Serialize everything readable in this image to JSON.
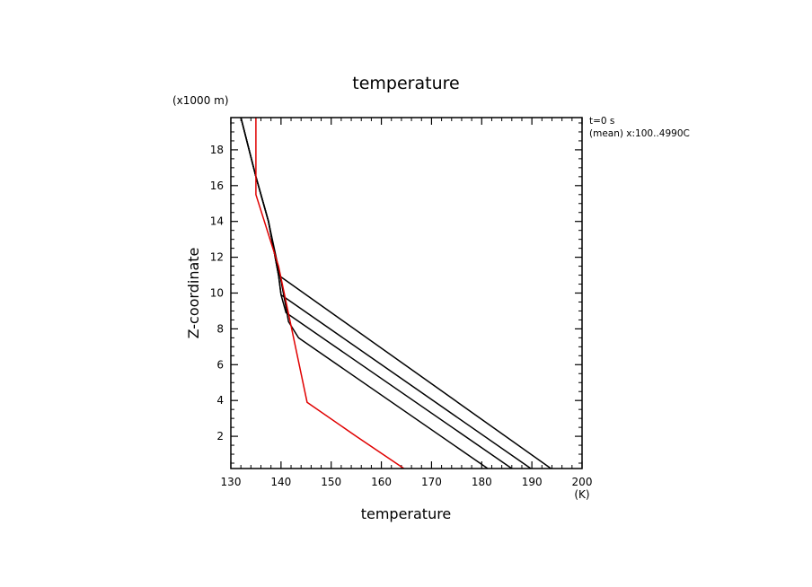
{
  "chart_data": {
    "type": "line",
    "title": "temperature",
    "xlabel": "temperature",
    "x_unit": "(K)",
    "ylabel": "Z-coordinate",
    "y_unit": "(x1000 m)",
    "annotation_lines": [
      "t=0 s",
      "(mean) x:100..4990C"
    ],
    "xlim": [
      130,
      200
    ],
    "ylim": [
      0.2,
      19.8
    ],
    "x_ticks": [
      130,
      140,
      150,
      160,
      170,
      180,
      190,
      200
    ],
    "y_ticks": [
      2,
      4,
      6,
      8,
      10,
      12,
      14,
      16,
      18
    ],
    "series": [
      {
        "color": "#000000",
        "points": [
          [
            193.8,
            0.2
          ],
          [
            139.5,
            11.0
          ],
          [
            137.5,
            14.0
          ],
          [
            135.0,
            16.5
          ],
          [
            132.0,
            19.8
          ]
        ]
      },
      {
        "color": "#000000",
        "points": [
          [
            189.8,
            0.2
          ],
          [
            140.0,
            9.9
          ],
          [
            139.5,
            11.0
          ],
          [
            137.5,
            14.0
          ],
          [
            135.0,
            16.5
          ],
          [
            132.0,
            19.8
          ]
        ]
      },
      {
        "color": "#000000",
        "points": [
          [
            186.0,
            0.2
          ],
          [
            141.0,
            8.9
          ],
          [
            140.0,
            9.9
          ],
          [
            139.5,
            11.0
          ],
          [
            137.5,
            14.0
          ],
          [
            135.0,
            16.5
          ],
          [
            132.0,
            19.8
          ]
        ]
      },
      {
        "color": "#000000",
        "points": [
          [
            181.2,
            0.2
          ],
          [
            143.5,
            7.5
          ],
          [
            141.5,
            8.4
          ],
          [
            140.8,
            9.5
          ],
          [
            139.8,
            11.0
          ],
          [
            137.5,
            14.0
          ],
          [
            135.0,
            16.5
          ],
          [
            132.0,
            19.8
          ]
        ]
      },
      {
        "color": "#e00000",
        "points": [
          [
            164.5,
            0.2
          ],
          [
            155.0,
            2.0
          ],
          [
            145.2,
            3.9
          ],
          [
            139.5,
            11.5
          ],
          [
            135.0,
            15.5
          ],
          [
            135.0,
            19.8
          ]
        ]
      }
    ]
  }
}
